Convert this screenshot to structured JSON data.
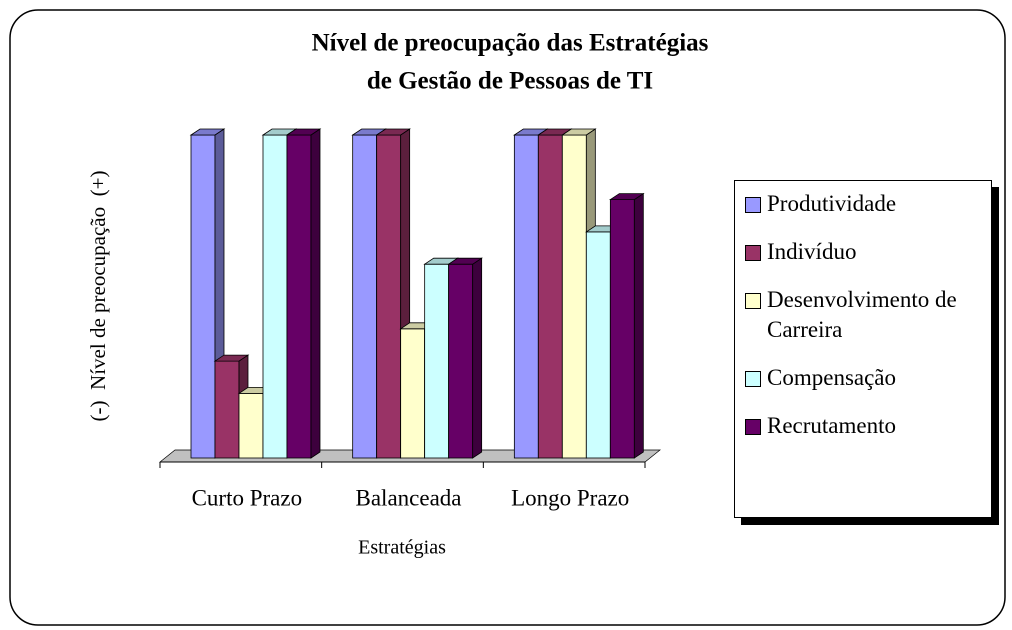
{
  "chart_data": {
    "type": "bar3d",
    "title": [
      "Nível de preocupação das Estratégias",
      "de Gestão de Pessoas de TI"
    ],
    "y_label": "(-)  Nível de preocupação  (+)",
    "x_label": "Estratégias",
    "categories": [
      "Curto Prazo",
      "Balanceada",
      "Longo Prazo"
    ],
    "ylim": [
      0,
      100
    ],
    "legend": "right",
    "series": [
      {
        "name": "Produtividade",
        "color": "#9999ff",
        "values": [
          100,
          100,
          100
        ]
      },
      {
        "name": "Indivíduo",
        "color": "#993366",
        "values": [
          30,
          100,
          100
        ]
      },
      {
        "name": "Desenvolvimento de Carreira",
        "color": "#ffffcc",
        "values": [
          20,
          40,
          100
        ]
      },
      {
        "name": "Compensação",
        "color": "#ccffff",
        "values": [
          100,
          60,
          70
        ]
      },
      {
        "name": "Recrutamento",
        "color": "#660066",
        "values": [
          100,
          60,
          80
        ]
      }
    ]
  }
}
